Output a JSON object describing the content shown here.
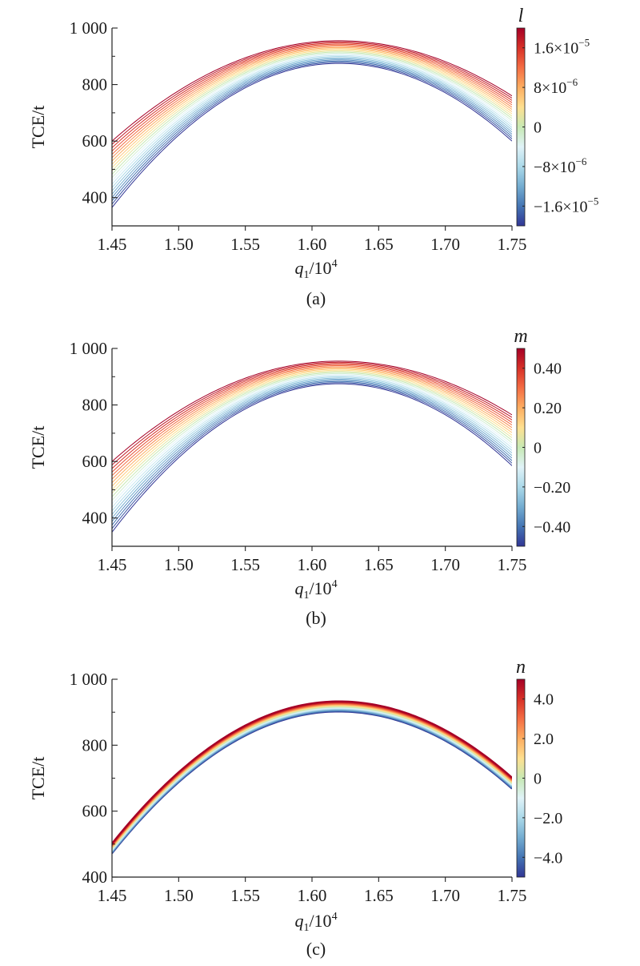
{
  "chart_data": [
    {
      "type": "line",
      "panel_label": "(a)",
      "xlabel": "q",
      "xlabel_sub": "1",
      "xlabel_tail": "/10",
      "xlabel_sup": "4",
      "ylabel": "TCE/t",
      "xlim": [
        1.45,
        1.75
      ],
      "ylim": [
        300,
        1000
      ],
      "x_ticks": [
        {
          "value": 1.45,
          "label": "1.45"
        },
        {
          "value": 1.5,
          "label": "1.50"
        },
        {
          "value": 1.55,
          "label": "1.55"
        },
        {
          "value": 1.6,
          "label": "1.60"
        },
        {
          "value": 1.65,
          "label": "1.65"
        },
        {
          "value": 1.7,
          "label": "1.70"
        },
        {
          "value": 1.75,
          "label": "1.75"
        }
      ],
      "y_ticks": [
        {
          "value": 400,
          "label": "400"
        },
        {
          "value": 600,
          "label": "600"
        },
        {
          "value": 800,
          "label": "800"
        },
        {
          "value": 1000,
          "label": "1 000"
        }
      ],
      "colorbar": {
        "label": "l",
        "range": [
          -2e-05,
          2e-05
        ],
        "ticks": [
          {
            "value": 1.6e-05,
            "base": "1.6×10",
            "exp": "−5"
          },
          {
            "value": 8e-06,
            "base": "8×10",
            "exp": "−6"
          },
          {
            "value": 0,
            "base": "0",
            "exp": ""
          },
          {
            "value": -8e-06,
            "base": "−8×10",
            "exp": "−6"
          },
          {
            "value": -1.6e-05,
            "base": "−1.6×10",
            "exp": "−5"
          }
        ]
      },
      "curves": {
        "count": 21,
        "vertex_x": 1.62,
        "bottom": {
          "y_start": 365,
          "y_peak": 875,
          "y_end": 600
        },
        "top": {
          "y_start": 600,
          "y_peak": 955,
          "y_end": 760
        }
      }
    },
    {
      "type": "line",
      "panel_label": "(b)",
      "xlabel": "q",
      "xlabel_sub": "1",
      "xlabel_tail": "/10",
      "xlabel_sup": "4",
      "ylabel": "TCE/t",
      "xlim": [
        1.45,
        1.75
      ],
      "ylim": [
        300,
        1000
      ],
      "x_ticks": [
        {
          "value": 1.45,
          "label": "1.45"
        },
        {
          "value": 1.5,
          "label": "1.50"
        },
        {
          "value": 1.55,
          "label": "1.55"
        },
        {
          "value": 1.6,
          "label": "1.60"
        },
        {
          "value": 1.65,
          "label": "1.65"
        },
        {
          "value": 1.7,
          "label": "1.70"
        },
        {
          "value": 1.75,
          "label": "1.75"
        }
      ],
      "y_ticks": [
        {
          "value": 400,
          "label": "400"
        },
        {
          "value": 600,
          "label": "600"
        },
        {
          "value": 800,
          "label": "800"
        },
        {
          "value": 1000,
          "label": "1 000"
        }
      ],
      "colorbar": {
        "label": "m",
        "range": [
          -0.5,
          0.5
        ],
        "ticks": [
          {
            "value": 0.4,
            "base": "0.40",
            "exp": ""
          },
          {
            "value": 0.2,
            "base": "0.20",
            "exp": ""
          },
          {
            "value": 0,
            "base": "0",
            "exp": ""
          },
          {
            "value": -0.2,
            "base": "−0.20",
            "exp": ""
          },
          {
            "value": -0.4,
            "base": "−0.40",
            "exp": ""
          }
        ]
      },
      "curves": {
        "count": 21,
        "vertex_x": 1.62,
        "bottom": {
          "y_start": 350,
          "y_peak": 875,
          "y_end": 585
        },
        "top": {
          "y_start": 600,
          "y_peak": 955,
          "y_end": 765
        }
      }
    },
    {
      "type": "line",
      "panel_label": "(c)",
      "xlabel": "q",
      "xlabel_sub": "1",
      "xlabel_tail": "/10",
      "xlabel_sup": "4",
      "ylabel": "TCE/t",
      "xlim": [
        1.45,
        1.75
      ],
      "ylim": [
        400,
        1000
      ],
      "x_ticks": [
        {
          "value": 1.45,
          "label": "1.45"
        },
        {
          "value": 1.5,
          "label": "1.50"
        },
        {
          "value": 1.55,
          "label": "1.55"
        },
        {
          "value": 1.6,
          "label": "1.60"
        },
        {
          "value": 1.65,
          "label": "1.65"
        },
        {
          "value": 1.7,
          "label": "1.70"
        },
        {
          "value": 1.75,
          "label": "1.75"
        }
      ],
      "y_ticks": [
        {
          "value": 400,
          "label": "400"
        },
        {
          "value": 600,
          "label": "600"
        },
        {
          "value": 800,
          "label": "800"
        },
        {
          "value": 1000,
          "label": "1 000"
        }
      ],
      "colorbar": {
        "label": "n",
        "range": [
          -5,
          5
        ],
        "ticks": [
          {
            "value": 4,
            "base": "4.0",
            "exp": ""
          },
          {
            "value": 2,
            "base": "2.0",
            "exp": ""
          },
          {
            "value": 0,
            "base": "0",
            "exp": ""
          },
          {
            "value": -2,
            "base": "−2.0",
            "exp": ""
          },
          {
            "value": -4,
            "base": "−4.0",
            "exp": ""
          }
        ]
      },
      "curves": {
        "count": 21,
        "vertex_x": 1.62,
        "bottom": {
          "y_start": 472,
          "y_peak": 902,
          "y_end": 668
        },
        "top": {
          "y_start": 502,
          "y_peak": 933,
          "y_end": 702
        }
      }
    }
  ],
  "colormap": [
    "#313695",
    "#4575b4",
    "#74add1",
    "#abd9e9",
    "#e0f3f8",
    "#c7e9b4",
    "#fee090",
    "#fdae61",
    "#f46d43",
    "#d73027",
    "#a50026"
  ]
}
